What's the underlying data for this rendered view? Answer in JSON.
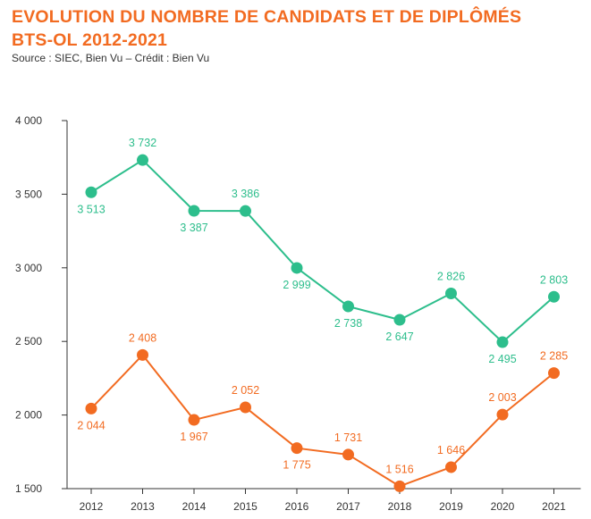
{
  "header": {
    "title_line1": "EVOLUTION DU NOMBRE DE CANDIDATS ET DE DIPLÔMÉS",
    "title_line2": "BTS-OL 2012-2021",
    "source": "Source : SIEC, Bien Vu – Crédit : Bien Vu"
  },
  "colors": {
    "title": "#F26B21",
    "candidats": "#2DBE8C",
    "diplomes": "#F26B21",
    "axis": "#333333"
  },
  "chart_data": {
    "type": "line",
    "title": "EVOLUTION DU NOMBRE DE CANDIDATS ET DE DIPLÔMÉS BTS-OL 2012-2021",
    "xlabel": "",
    "ylabel": "",
    "categories": [
      "2012",
      "2013",
      "2014",
      "2015",
      "2016",
      "2017",
      "2018",
      "2019",
      "2020",
      "2021"
    ],
    "ylim": [
      1500,
      4000
    ],
    "yticks": [
      1500,
      2000,
      2500,
      3000,
      3500,
      4000
    ],
    "ytick_labels": [
      "1 500",
      "2 000",
      "2 500",
      "3 000",
      "3 500",
      "4 000"
    ],
    "grid": false,
    "series": [
      {
        "name": "Candidats",
        "color": "#2DBE8C",
        "values": [
          3513,
          3732,
          3387,
          3386,
          2999,
          2738,
          2647,
          2826,
          2495,
          2803
        ],
        "labels": [
          "3 513",
          "3 732",
          "3 387",
          "3 386",
          "2 999",
          "2 738",
          "2 647",
          "2 826",
          "2 495",
          "2 803"
        ],
        "label_pos": [
          "below",
          "above",
          "below",
          "above",
          "below",
          "below",
          "below",
          "above",
          "below",
          "above"
        ]
      },
      {
        "name": "Diplômés",
        "color": "#F26B21",
        "values": [
          2044,
          2408,
          1967,
          2052,
          1775,
          1731,
          1516,
          1646,
          2003,
          2285
        ],
        "labels": [
          "2 044",
          "2 408",
          "1 967",
          "2 052",
          "1 775",
          "1 731",
          "1 516",
          "1 646",
          "2 003",
          "2 285"
        ],
        "label_pos": [
          "below",
          "above",
          "below",
          "above",
          "below",
          "above",
          "above",
          "above",
          "above",
          "above"
        ]
      }
    ]
  }
}
